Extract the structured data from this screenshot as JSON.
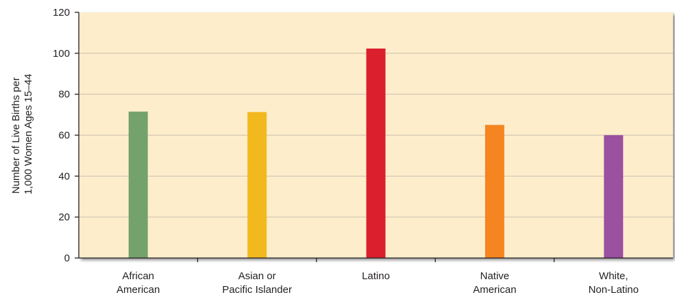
{
  "chart_data": {
    "type": "bar",
    "title": "",
    "xlabel": "",
    "ylabel_lines": [
      "Number of Live Births per",
      "1,000 Women Ages 15–44"
    ],
    "ylim": [
      0,
      120
    ],
    "yticks": [
      0,
      20,
      40,
      60,
      80,
      100,
      120
    ],
    "grid": true,
    "categories": [
      [
        "African",
        "American"
      ],
      [
        "Asian or",
        "Pacific Islander"
      ],
      [
        "Latino"
      ],
      [
        "Native",
        "American"
      ],
      [
        "White,",
        "Non-Latino"
      ]
    ],
    "values": [
      71.5,
      71.3,
      102.3,
      65.0,
      60.0
    ],
    "bar_colors": [
      "#74a26d",
      "#f2b91e",
      "#dc1f2c",
      "#f48521",
      "#9b50a0"
    ]
  },
  "colors": {
    "plot_background": "#fdedcb",
    "gridline": "#c9c0ae",
    "axis": "#231f20"
  }
}
